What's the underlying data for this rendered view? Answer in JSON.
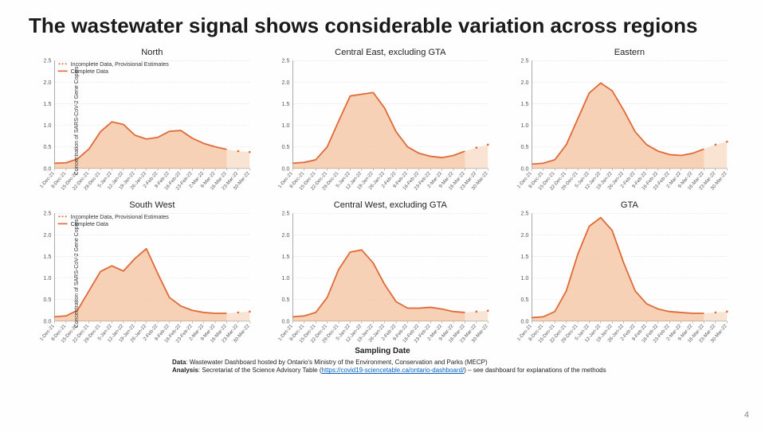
{
  "title": "The wastewater signal shows considerable variation across regions",
  "ylabel": "Concentration of SARS-CoV-2 Gene Copies",
  "xlabel": "Sampling Date",
  "page_number": "4",
  "footer": {
    "data_label": "Data",
    "data_text": ": Wastewater Dashboard hosted by Ontario's Ministry of the Environment, Conservation and Parks (MECP)",
    "analysis_label": "Analysis",
    "analysis_text_pre": ": Secretariat of the Science Advisory Table (",
    "analysis_link": "https://covid19-sciencetable.ca/ontario-dashboard/",
    "analysis_text_post": ") – see dashboard for explanations of the methods"
  },
  "legend": {
    "incomplete": "Incomplete Data, Provisional Estimates",
    "complete": "Complete Data"
  },
  "colors": {
    "line": "#e06b3a",
    "fill": "#f4c9a8",
    "fill_incomplete": "#f8ddc8",
    "grid": "#d9d9d9",
    "axis": "#888"
  },
  "chart_style": {
    "ylim": [
      0,
      2.5
    ],
    "ytick_step": 0.5,
    "line_width": 1.8,
    "incomplete_marker": "dot"
  },
  "x_categories": [
    "1-Dec-21",
    "8-Dec-21",
    "15-Dec-21",
    "22-Dec-21",
    "29-Dec-21",
    "5-Jan-22",
    "12-Jan-22",
    "19-Jan-22",
    "26-Jan-22",
    "2-Feb-22",
    "9-Feb-22",
    "16-Feb-22",
    "23-Feb-22",
    "2-Mar-22",
    "9-Mar-22",
    "16-Mar-22",
    "23-Mar-22",
    "30-Mar-22"
  ],
  "panels": [
    {
      "title": "North",
      "show_legend": true,
      "values": [
        0.12,
        0.13,
        0.22,
        0.45,
        0.85,
        1.08,
        1.02,
        0.77,
        0.68,
        0.72,
        0.86,
        0.88,
        0.7,
        0.58,
        0.5,
        0.44
      ],
      "incomplete_values": [
        0.4,
        0.38
      ]
    },
    {
      "title": "Central East, excluding GTA",
      "show_legend": false,
      "values": [
        0.12,
        0.14,
        0.2,
        0.5,
        1.1,
        1.68,
        1.72,
        1.76,
        1.4,
        0.85,
        0.5,
        0.35,
        0.28,
        0.25,
        0.3,
        0.4
      ],
      "incomplete_values": [
        0.48,
        0.55
      ]
    },
    {
      "title": "Eastern",
      "show_legend": false,
      "values": [
        0.1,
        0.12,
        0.2,
        0.55,
        1.15,
        1.75,
        1.98,
        1.8,
        1.35,
        0.85,
        0.55,
        0.4,
        0.32,
        0.3,
        0.35,
        0.45
      ],
      "incomplete_values": [
        0.55,
        0.62
      ]
    },
    {
      "title": "South West",
      "show_legend": true,
      "values": [
        0.1,
        0.12,
        0.25,
        0.7,
        1.15,
        1.28,
        1.16,
        1.45,
        1.68,
        1.1,
        0.55,
        0.35,
        0.25,
        0.2,
        0.18,
        0.18
      ],
      "incomplete_values": [
        0.2,
        0.22
      ]
    },
    {
      "title": "Central West, excluding GTA",
      "show_legend": false,
      "values": [
        0.1,
        0.12,
        0.2,
        0.55,
        1.2,
        1.6,
        1.65,
        1.35,
        0.85,
        0.45,
        0.3,
        0.3,
        0.32,
        0.28,
        0.22,
        0.2
      ],
      "incomplete_values": [
        0.22,
        0.24
      ]
    },
    {
      "title": "GTA",
      "show_legend": false,
      "values": [
        0.08,
        0.1,
        0.22,
        0.7,
        1.55,
        2.2,
        2.4,
        2.1,
        1.35,
        0.7,
        0.4,
        0.28,
        0.22,
        0.2,
        0.18,
        0.18
      ],
      "incomplete_values": [
        0.2,
        0.22
      ]
    }
  ]
}
